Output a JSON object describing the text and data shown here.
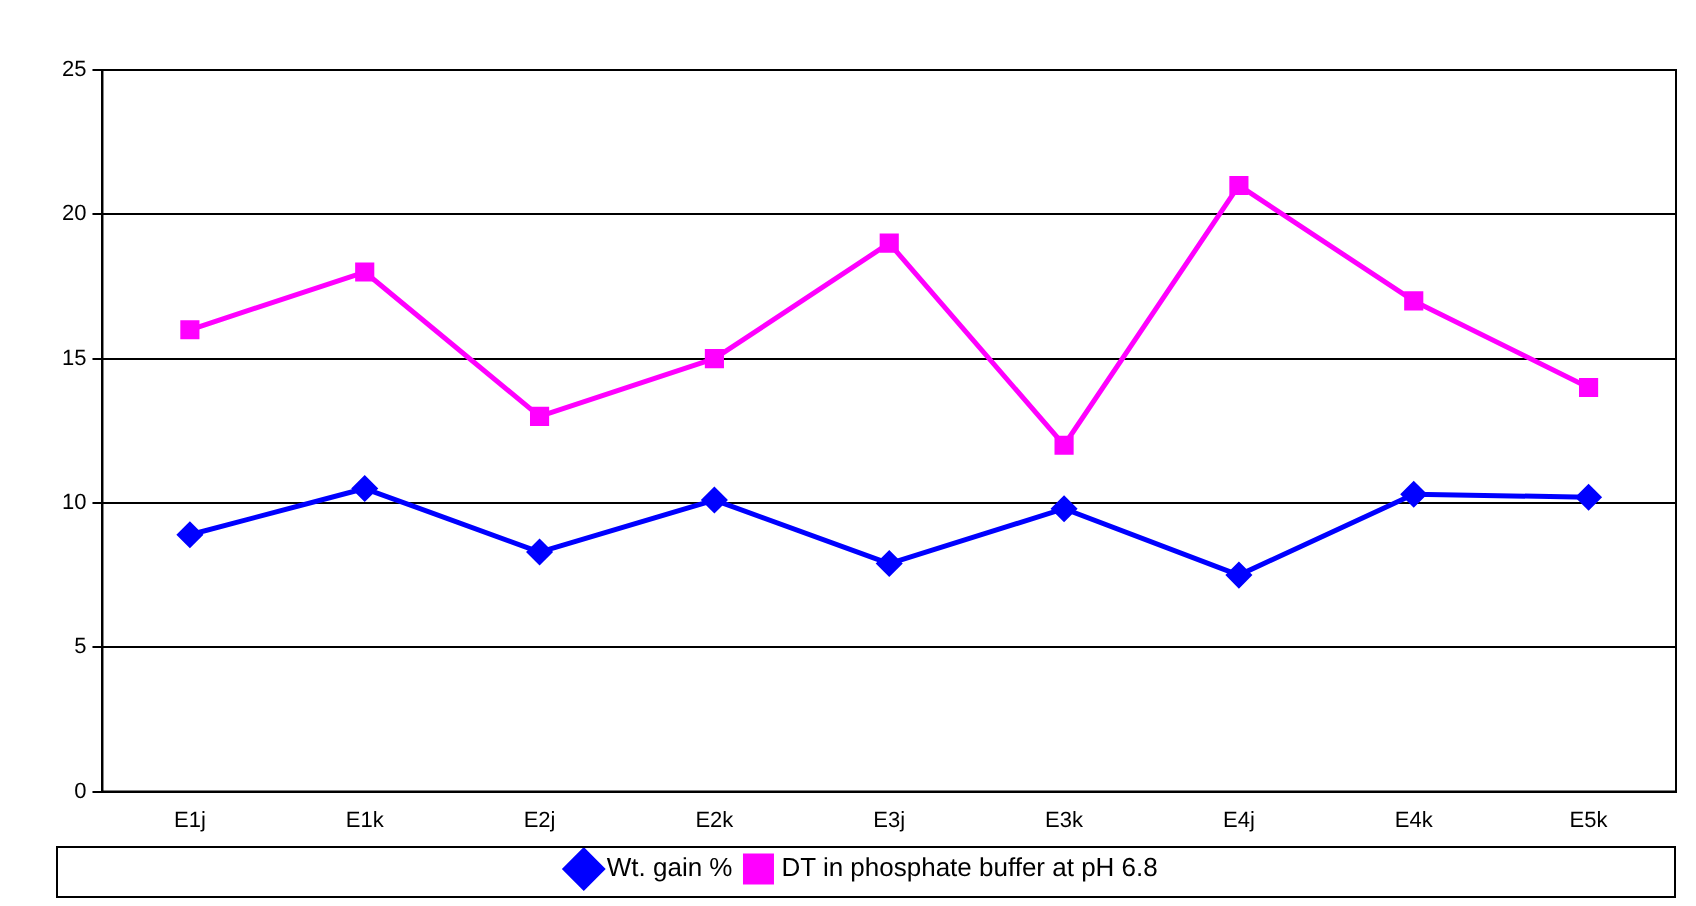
{
  "chart_data": {
    "type": "line",
    "categories": [
      "E1j",
      "E1k",
      "E2j",
      "E2k",
      "E3j",
      "E3k",
      "E4j",
      "E4k",
      "E5k"
    ],
    "series": [
      {
        "name": "Wt. gain %",
        "color": "#0000ff",
        "marker": "diamond",
        "values": [
          8.9,
          10.5,
          8.3,
          10.1,
          7.9,
          9.8,
          7.5,
          10.3,
          10.2
        ]
      },
      {
        "name": "DT in phosphate buffer at pH 6.8",
        "color": "#ff00ff",
        "marker": "square",
        "values": [
          16,
          18,
          13,
          15,
          19,
          12,
          21,
          17,
          14
        ]
      }
    ],
    "ylim": [
      0,
      25
    ],
    "yticks": [
      0,
      5,
      10,
      15,
      20,
      25
    ],
    "grid": "y",
    "legend": "bottom",
    "line_style": "solid"
  }
}
